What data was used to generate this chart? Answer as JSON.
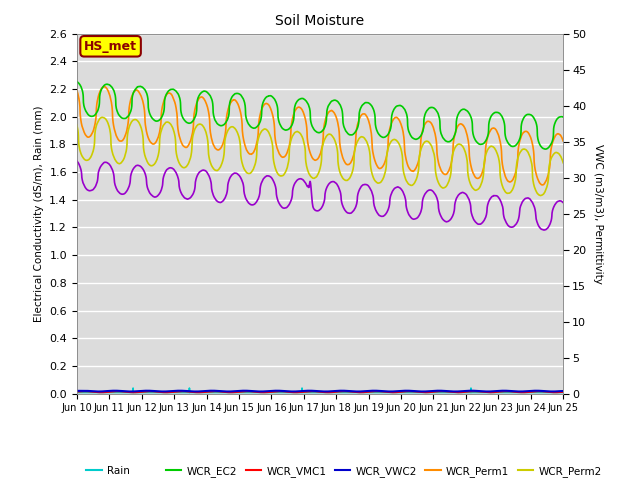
{
  "title": "Soil Moisture",
  "ylabel_left": "Electrical Conductivity (dS/m), Rain (mm)",
  "ylabel_right": "VWC (m3/m3), Permittivity",
  "ylim_left": [
    0,
    2.6
  ],
  "ylim_right": [
    0,
    50
  ],
  "yticks_left": [
    0.0,
    0.2,
    0.4,
    0.6,
    0.8,
    1.0,
    1.2,
    1.4,
    1.6,
    1.8,
    2.0,
    2.2,
    2.4,
    2.6
  ],
  "yticks_right": [
    0,
    5,
    10,
    15,
    20,
    25,
    30,
    35,
    40,
    45,
    50
  ],
  "xtick_labels": [
    "Jun 10",
    "Jun 11",
    "Jun 12",
    "Jun 13",
    "Jun 14",
    "Jun 15",
    "Jun 16",
    "Jun 17",
    "Jun 18",
    "Jun 19",
    "Jun 20",
    "Jun 21",
    "Jun 22",
    "Jun 23",
    "Jun 24",
    "Jun 25"
  ],
  "annotation_text": "HS_met",
  "annotation_color": "#8B0000",
  "annotation_bg": "#FFFF00",
  "annotation_edge": "#8B0000",
  "colors": {
    "Rain": "#00CCCC",
    "WCR_EC1": "#9900CC",
    "WCR_EC2": "#00CC00",
    "WCR_VMC1": "#FF0000",
    "WCR_VWC2": "#0000CC",
    "WCR_Perm1": "#FF8C00",
    "WCR_Perm2": "#CCCC00"
  },
  "plot_bg": "#DCDCDC",
  "fig_bg": "#FFFFFF",
  "grid_color": "#FFFFFF",
  "linewidth": 1.2
}
